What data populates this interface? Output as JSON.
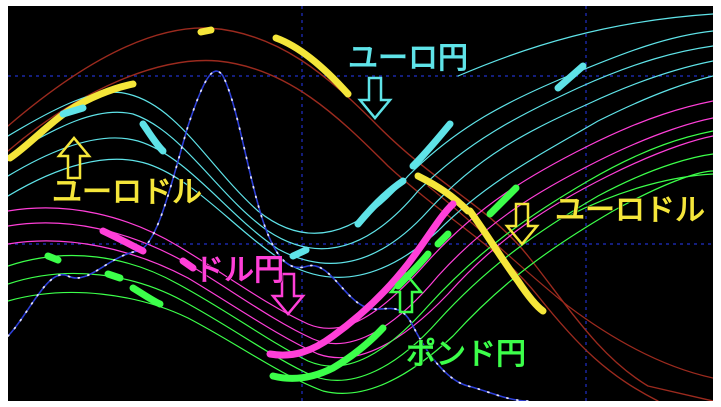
{
  "chart_data": {
    "type": "line",
    "title": "",
    "xlabel": "",
    "ylabel": "",
    "grid": true,
    "x": [
      0,
      10,
      20,
      30,
      40,
      50,
      60,
      70,
      80,
      90,
      100
    ],
    "ylim": [
      0,
      100
    ],
    "colors": {
      "background": "#000000",
      "grid": "#2030c8",
      "euroyen": "#5fe3e8",
      "eurodollar": "#f5e63a",
      "dollaryen": "#ff3fd8",
      "poundyen": "#3cff4a",
      "band_brown": "#9b2a1e",
      "price_blue": "#2d3fd6"
    },
    "series": [
      {
        "key": "euroyen",
        "values": [
          62,
          75,
          70,
          52,
          38,
          40,
          55,
          70,
          78,
          84,
          90
        ]
      },
      {
        "key": "eurodollar",
        "values": [
          60,
          80,
          92,
          93,
          86,
          72,
          56,
          48,
          30,
          12,
          4
        ]
      },
      {
        "key": "dollaryen",
        "values": [
          48,
          45,
          38,
          28,
          18,
          20,
          34,
          50,
          62,
          70,
          76
        ]
      },
      {
        "key": "poundyen",
        "values": [
          38,
          36,
          30,
          20,
          12,
          16,
          26,
          40,
          52,
          64,
          74
        ]
      }
    ],
    "annotations": [
      {
        "id": "euroyen",
        "text": "ユーロ円",
        "arrow": "down"
      },
      {
        "id": "eurodollar-left",
        "text": "ユーロドル",
        "arrow": "up"
      },
      {
        "id": "eurodollar-right",
        "text": "ユーロドル",
        "arrow": "down"
      },
      {
        "id": "dollaryen",
        "text": "ドル円",
        "arrow": "down"
      },
      {
        "id": "poundyen",
        "text": "ポンド円",
        "arrow": "up"
      }
    ]
  }
}
